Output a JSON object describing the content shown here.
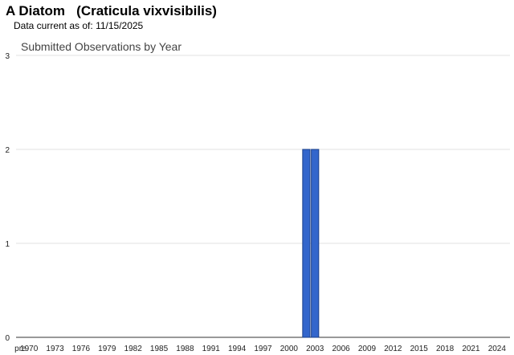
{
  "page": {
    "title": "A Diatom   (Craticula vixvisibilis)",
    "data_current_label": "Data current as of:",
    "data_current_date": "11/15/2025"
  },
  "chart_data": {
    "type": "bar",
    "title": "Submitted Observations by Year",
    "xlabel": "",
    "ylabel": "",
    "ylim": [
      0,
      3
    ],
    "yticks": [
      0,
      1,
      2,
      3
    ],
    "x_tick_labels": [
      "pre",
      "1970",
      "1973",
      "1976",
      "1979",
      "1982",
      "1985",
      "1988",
      "1991",
      "1994",
      "1997",
      "2000",
      "2003",
      "2006",
      "2009",
      "2012",
      "2015",
      "2018",
      "2021",
      "2024"
    ],
    "categories": [
      "pre",
      "1970",
      "1971",
      "1972",
      "1973",
      "1974",
      "1975",
      "1976",
      "1977",
      "1978",
      "1979",
      "1980",
      "1981",
      "1982",
      "1983",
      "1984",
      "1985",
      "1986",
      "1987",
      "1988",
      "1989",
      "1990",
      "1991",
      "1992",
      "1993",
      "1994",
      "1995",
      "1996",
      "1997",
      "1998",
      "1999",
      "2000",
      "2001",
      "2002",
      "2003",
      "2004",
      "2005",
      "2006",
      "2007",
      "2008",
      "2009",
      "2010",
      "2011",
      "2012",
      "2013",
      "2014",
      "2015",
      "2016",
      "2017",
      "2018",
      "2019",
      "2020",
      "2021",
      "2022",
      "2023",
      "2024",
      "2025"
    ],
    "values": [
      0,
      0,
      0,
      0,
      0,
      0,
      0,
      0,
      0,
      0,
      0,
      0,
      0,
      0,
      0,
      0,
      0,
      0,
      0,
      0,
      0,
      0,
      0,
      0,
      0,
      0,
      0,
      0,
      0,
      0,
      0,
      0,
      0,
      2,
      2,
      0,
      0,
      0,
      0,
      0,
      0,
      0,
      0,
      0,
      0,
      0,
      0,
      0,
      0,
      0,
      0,
      0,
      0,
      0,
      0,
      0,
      0
    ],
    "grid": true,
    "legend": "none",
    "bar_color": "#3366cc"
  }
}
